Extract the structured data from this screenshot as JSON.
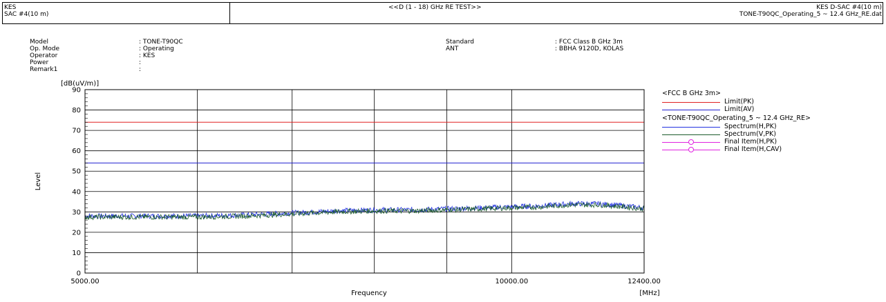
{
  "header": {
    "left_line1": "KES",
    "left_line2": "SAC #4(10 m)",
    "center_title": "<<D (1 - 18) GHz RE TEST>>",
    "right_line1": "KES D-SAC #4(10 m)",
    "right_line2": "TONE-T90QC_Operating_5 ~ 12.4 GHz_RE.dat"
  },
  "info_left": [
    {
      "label": "Model",
      "value": ": TONE-T90QC"
    },
    {
      "label": "Op. Mode",
      "value": ": Operating"
    },
    {
      "label": "Operator",
      "value": ": KES"
    },
    {
      "label": "Power",
      "value": ":"
    },
    {
      "label": "Remark1",
      "value": ":"
    }
  ],
  "info_right": [
    {
      "label": "Standard",
      "value": ": FCC Class B GHz 3m"
    },
    {
      "label": "ANT",
      "value": ": BBHA 9120D, KOLAS"
    }
  ],
  "legend": {
    "group1_title": "<FCC B GHz 3m>",
    "group2_title": "<TONE-T90QC_Operating_5 ~ 12.4 GHz_RE>",
    "items": [
      {
        "label": "Limit(PK)",
        "color": "#e02020",
        "marker": false,
        "group": 1
      },
      {
        "label": "Limit(AV)",
        "color": "#2020d0",
        "marker": false,
        "group": 1
      },
      {
        "label": "Spectrum(H,PK)",
        "color": "#2030e0",
        "marker": false,
        "group": 2
      },
      {
        "label": "Spectrum(V,PK)",
        "color": "#1a5a2a",
        "marker": false,
        "group": 2
      },
      {
        "label": "Final Item(H,PK)",
        "color": "#e020e0",
        "marker": true,
        "group": 2
      },
      {
        "label": "Final Item(H,CAV)",
        "color": "#e020e0",
        "marker": true,
        "group": 2
      }
    ]
  },
  "chart_data": {
    "type": "line",
    "ylabel": "Level",
    "yunit": "[dB(uV/m)]",
    "xlabel": "Frequency",
    "xunit": "[MHz]",
    "xlim": [
      5000,
      12400
    ],
    "ylim": [
      0,
      90
    ],
    "y_ticks": [
      0,
      10,
      20,
      30,
      40,
      50,
      60,
      70,
      80,
      90
    ],
    "x_tick_labels": [
      {
        "value": 5000,
        "label": "5000.00"
      },
      {
        "value": 10000,
        "label": "10000.00"
      },
      {
        "value": 12400,
        "label": "12400.00"
      }
    ],
    "x_gridlines": [
      5000,
      6000,
      7000,
      8000,
      9000,
      10000,
      12400
    ],
    "log_x": true,
    "limits": [
      {
        "name": "Limit(PK)",
        "value": 74,
        "color": "#e02020"
      },
      {
        "name": "Limit(AV)",
        "value": 54,
        "color": "#2020d0"
      }
    ],
    "series": [
      {
        "name": "Spectrum(H,PK)",
        "color": "#2030e0",
        "x": [
          5000,
          5500,
          6000,
          6500,
          7000,
          7500,
          8000,
          8500,
          9000,
          9500,
          10000,
          10500,
          11000,
          11500,
          12000,
          12400
        ],
        "values": [
          28,
          28,
          28,
          28.5,
          29.5,
          30.5,
          31,
          31,
          31.5,
          32,
          32.5,
          33,
          34,
          34,
          33,
          32
        ]
      },
      {
        "name": "Spectrum(V,PK)",
        "color": "#1a5a2a",
        "x": [
          5000,
          5500,
          6000,
          6500,
          7000,
          7500,
          8000,
          8500,
          9000,
          9500,
          10000,
          10500,
          11000,
          11500,
          12000,
          12400
        ],
        "values": [
          27.5,
          27.5,
          27.5,
          28,
          29,
          30,
          30.5,
          30.5,
          31,
          31.5,
          32,
          32.5,
          33.5,
          33.5,
          32.5,
          31.5
        ]
      }
    ]
  }
}
